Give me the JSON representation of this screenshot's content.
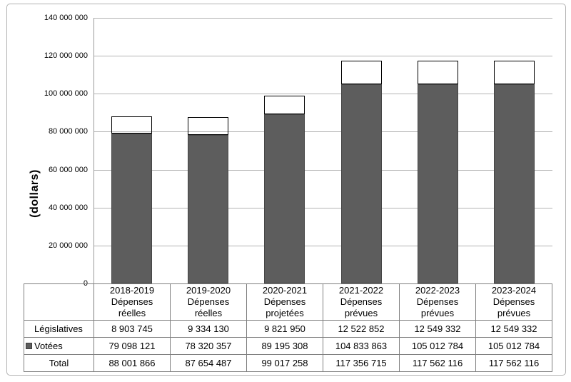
{
  "colors": {
    "votees_fill": "#5d5d5d",
    "votees_border": "#454545",
    "legislatives_fill": "#b8b8b8",
    "legislatives_border": "#7d7d7d",
    "gridline": "#b3b3b3",
    "table_border": "#7f7f7f",
    "figure_border": "#b2b2b2"
  },
  "chart_data": {
    "type": "bar",
    "stacked": true,
    "title": "",
    "xlabel": "",
    "ylabel": "(dollars)",
    "ylim": [
      0,
      140000000
    ],
    "grid": true,
    "legend_position": "left-of-table-rows",
    "yticks": [
      0,
      20000000,
      40000000,
      60000000,
      80000000,
      100000000,
      120000000,
      140000000
    ],
    "ytick_labels": [
      "0",
      "20 000 000",
      "40 000 000",
      "60 000 000",
      "80 000 000",
      "100 000 000",
      "120 000 000",
      "140 000 000"
    ],
    "categories": [
      [
        "2018-2019",
        "Dépenses",
        "réelles"
      ],
      [
        "2019-2020",
        "Dépenses",
        "réelles"
      ],
      [
        "2020-2021",
        "Dépenses",
        "projetées"
      ],
      [
        "2021-2022",
        "Dépenses",
        "prévues"
      ],
      [
        "2022-2023",
        "Dépenses",
        "prévues"
      ],
      [
        "2023-2024",
        "Dépenses",
        "prévues"
      ]
    ],
    "series": [
      {
        "name": "Législatives",
        "slug": "legislatives",
        "values": [
          8903745,
          9334130,
          9821950,
          12522852,
          12549332,
          12549332
        ],
        "values_formatted": [
          "8 903 745",
          "9 334 130",
          "9 821 950",
          "12 522 852",
          "12 549 332",
          "12 549 332"
        ]
      },
      {
        "name": "Votées",
        "slug": "votees",
        "values": [
          79098121,
          78320357,
          89195308,
          104833863,
          105012784,
          105012784
        ],
        "values_formatted": [
          "79 098 121",
          "78 320 357",
          "89 195 308",
          "104 833 863",
          "105 012 784",
          "105 012 784"
        ]
      }
    ],
    "total_row": {
      "label": "Total",
      "values": [
        88001866,
        87654487,
        99017258,
        117356715,
        117562116,
        117562116
      ],
      "values_formatted": [
        "88 001 866",
        "87 654 487",
        "99 017 258",
        "117 356 715",
        "117 562 116",
        "117 562 116"
      ]
    }
  }
}
